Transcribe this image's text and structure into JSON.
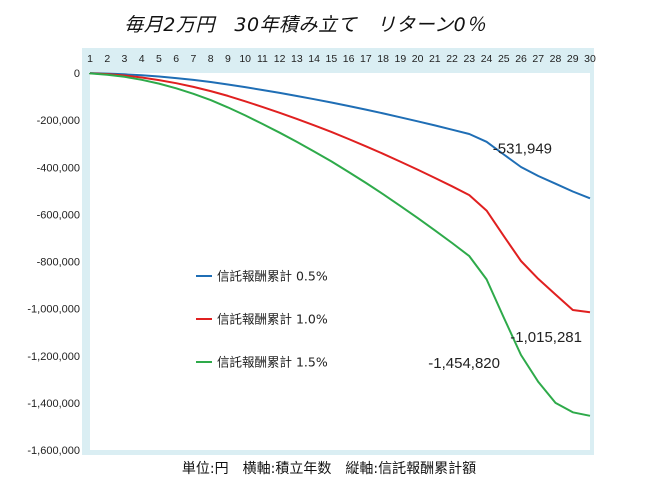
{
  "title": "毎月2万円　30年積み立て　リターン0％",
  "footer": "単位:円　横軸:積立年数　縦軸:信託報酬累計額",
  "colors": {
    "plot_bg": "#daeef3",
    "s1": "#1f6eb5",
    "s2": "#e02020",
    "s3": "#2eaa4a"
  },
  "chart_data": {
    "type": "line",
    "title": "毎月2万円　30年積み立て　リターン0％",
    "x": [
      1,
      2,
      3,
      4,
      5,
      6,
      7,
      8,
      9,
      10,
      11,
      12,
      13,
      14,
      15,
      16,
      17,
      18,
      19,
      20,
      21,
      22,
      23,
      24,
      25,
      26,
      27,
      28,
      29,
      30
    ],
    "ylim": [
      -1600000,
      0
    ],
    "yticks": [
      0,
      -200000,
      -400000,
      -600000,
      -800000,
      -1000000,
      -1200000,
      -1400000,
      -1600000
    ],
    "ytick_labels": [
      "0",
      "-200,000",
      "-400,000",
      "-600,000",
      "-800,000",
      "-1,000,000",
      "-1,200,000",
      "-1,400,000",
      "-1,600,000"
    ],
    "x_axis_position": "top",
    "legend_placement": "center-left",
    "series": [
      {
        "name": "信託報酬累計 0.5%",
        "color": "#1f6eb5",
        "values": [
          -600,
          -2400,
          -5400,
          -9600,
          -15000,
          -21600,
          -29400,
          -38400,
          -48600,
          -60000,
          -72000,
          -84500,
          -97500,
          -111000,
          -125000,
          -140000,
          -155500,
          -171500,
          -188000,
          -205000,
          -222500,
          -240500,
          -259000,
          -292000,
          -346000,
          -399000,
          -437000,
          -470000,
          -503000,
          -531949
        ]
      },
      {
        "name": "信託報酬累計 1.0%",
        "color": "#e02020",
        "values": [
          -1200,
          -4800,
          -10800,
          -19200,
          -30000,
          -43200,
          -58800,
          -76800,
          -97200,
          -120000,
          -144000,
          -169000,
          -195000,
          -222000,
          -250000,
          -280000,
          -311000,
          -343000,
          -376000,
          -410000,
          -445000,
          -481000,
          -518000,
          -584000,
          -692000,
          -798000,
          -874000,
          -940000,
          -1006000,
          -1015281
        ]
      },
      {
        "name": "信託報酬累計 1.5%",
        "color": "#2eaa4a",
        "values": [
          -1800,
          -7200,
          -16200,
          -28800,
          -45000,
          -64800,
          -88200,
          -115200,
          -145800,
          -180000,
          -216000,
          -253500,
          -292500,
          -333000,
          -375000,
          -420000,
          -466500,
          -514500,
          -564000,
          -615000,
          -667500,
          -721500,
          -777000,
          -876000,
          -1038000,
          -1197000,
          -1311000,
          -1400000,
          -1440000,
          -1454820
        ]
      }
    ],
    "data_labels": [
      {
        "series": 0,
        "text": "-531,949"
      },
      {
        "series": 1,
        "text": "-1,015,281"
      },
      {
        "series": 2,
        "text": "-1,454,820"
      }
    ]
  }
}
